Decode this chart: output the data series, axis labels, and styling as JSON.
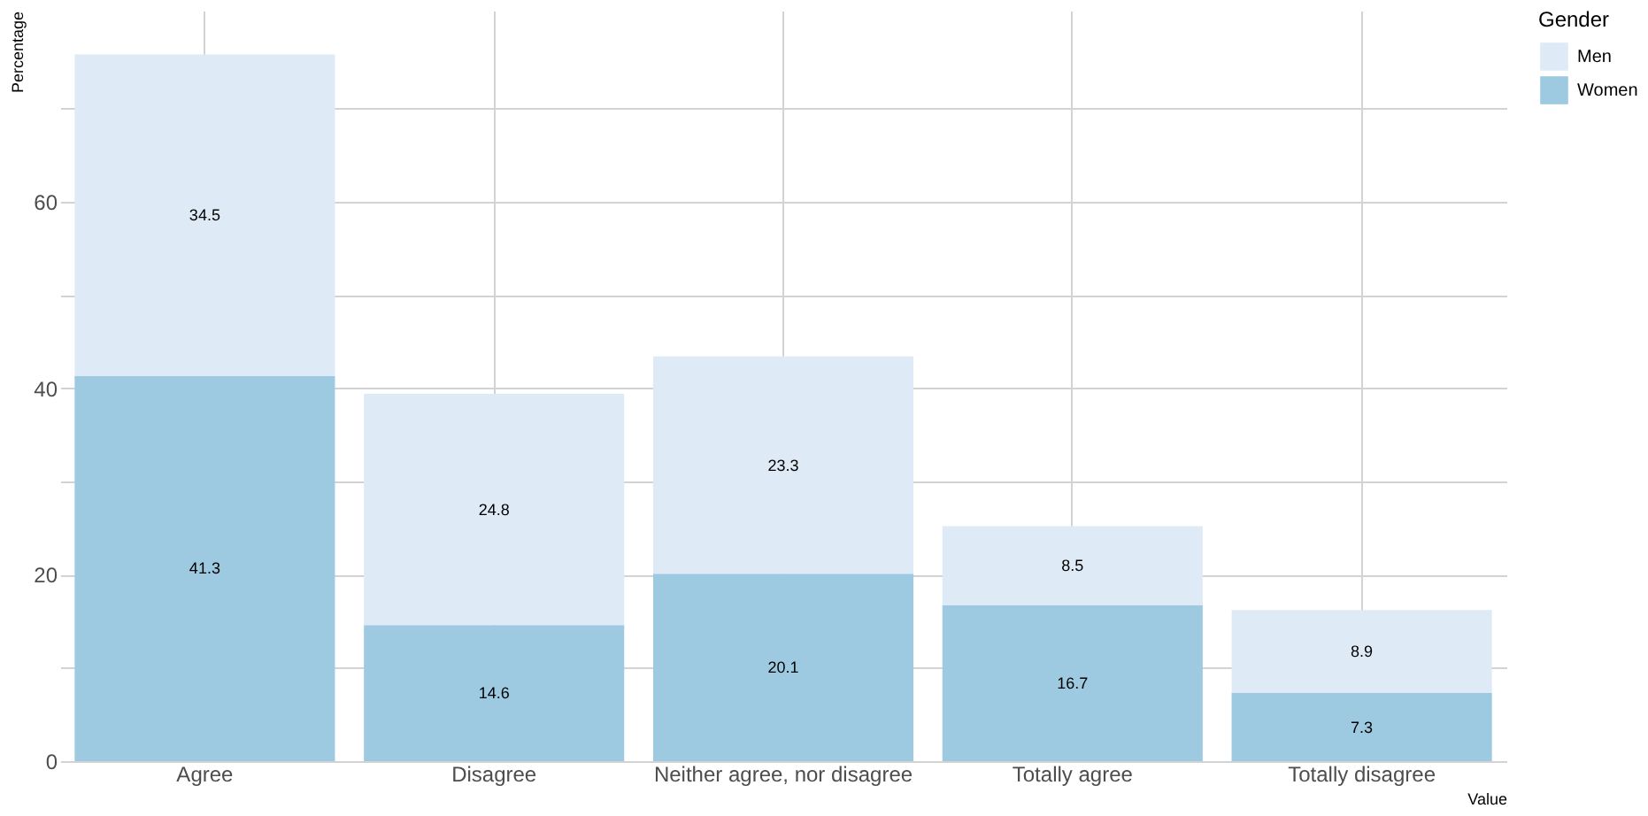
{
  "chart_data": {
    "type": "bar",
    "stacked": true,
    "xlabel": "Value",
    "ylabel": "Percentage",
    "legend_title": "Gender",
    "categories": [
      "Agree",
      "Disagree",
      "Neither agree, nor disagree",
      "Totally agree",
      "Totally disagree"
    ],
    "series": [
      {
        "name": "Women",
        "color": "#9ecae1",
        "values": [
          41.3,
          14.6,
          20.1,
          16.7,
          7.3
        ]
      },
      {
        "name": "Men",
        "color": "#deebf7",
        "values": [
          34.5,
          24.8,
          23.3,
          8.5,
          8.9
        ]
      }
    ],
    "ylim": [
      0,
      80.5
    ],
    "yticks": [
      0,
      20,
      40,
      60,
      {
        "value": 10,
        "label": null
      },
      {
        "value": 30,
        "label": null
      },
      {
        "value": 50,
        "label": null
      },
      {
        "value": 70,
        "label": null
      }
    ],
    "grid": true,
    "legend": "right",
    "data_labels": true
  }
}
